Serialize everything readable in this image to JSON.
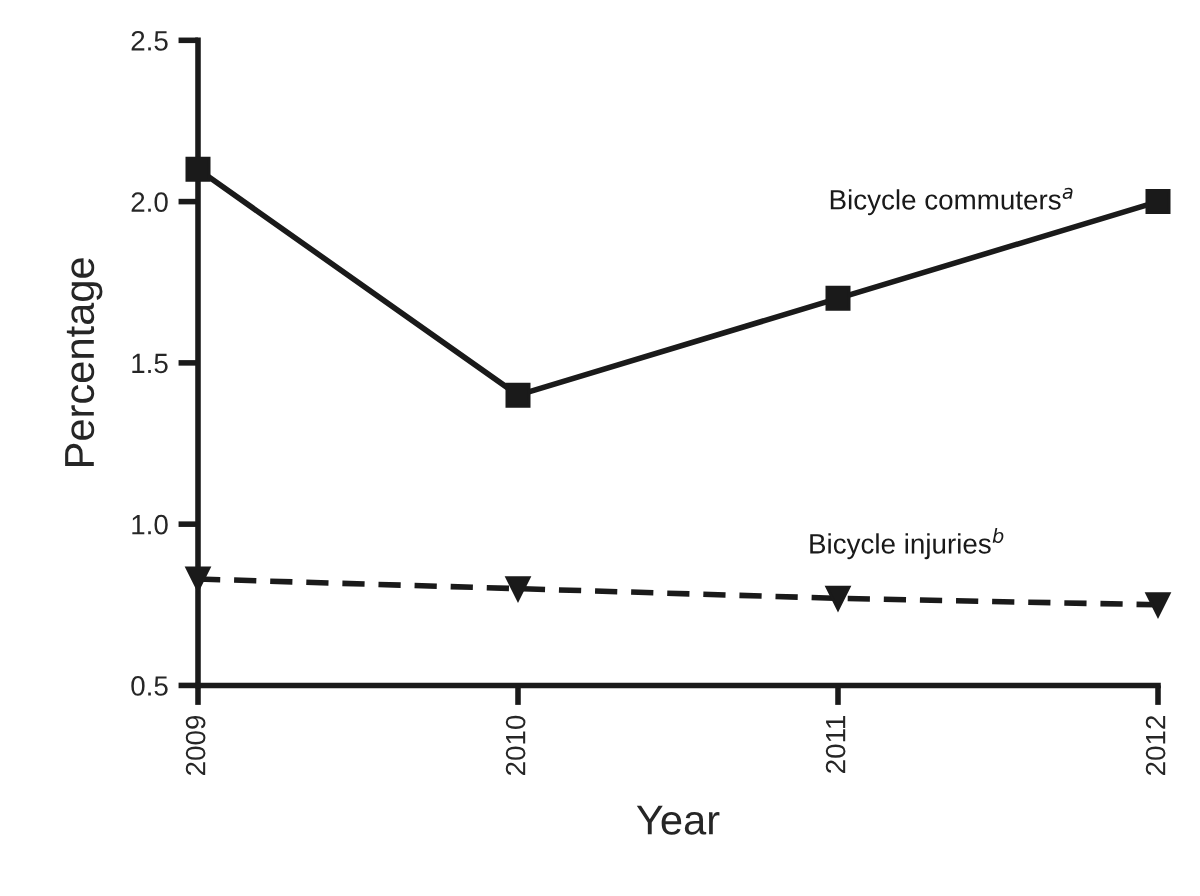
{
  "chart_data": {
    "type": "line",
    "xlabel": "Year",
    "ylabel": "Percentage",
    "categories": [
      "2009",
      "2010",
      "2011",
      "2012"
    ],
    "series": [
      {
        "name": "Bicycle commuters$^{a}$",
        "color": "#1a1a1a",
        "values": [
          2.1,
          1.4,
          1.7,
          2.0
        ],
        "marker": "square",
        "line_style": "solid"
      },
      {
        "name": "Bicycle injuries$^{b}$",
        "color": "#1a1a1a",
        "values": [
          0.83,
          0.8,
          0.77,
          0.75
        ],
        "marker": "triangle",
        "line_style": "dashed"
      }
    ],
    "ylim": [
      0.5,
      2.5
    ],
    "yticks": [
      {
        "value": 0.5,
        "label": "0.5"
      },
      {
        "value": 1.0,
        "label": "1.0"
      },
      {
        "value": 1.5,
        "label": "1.5"
      },
      {
        "value": 2.0,
        "label": "2.0"
      },
      {
        "value": 2.5,
        "label": "2.5"
      }
    ],
    "grid": false,
    "legend": false
  }
}
